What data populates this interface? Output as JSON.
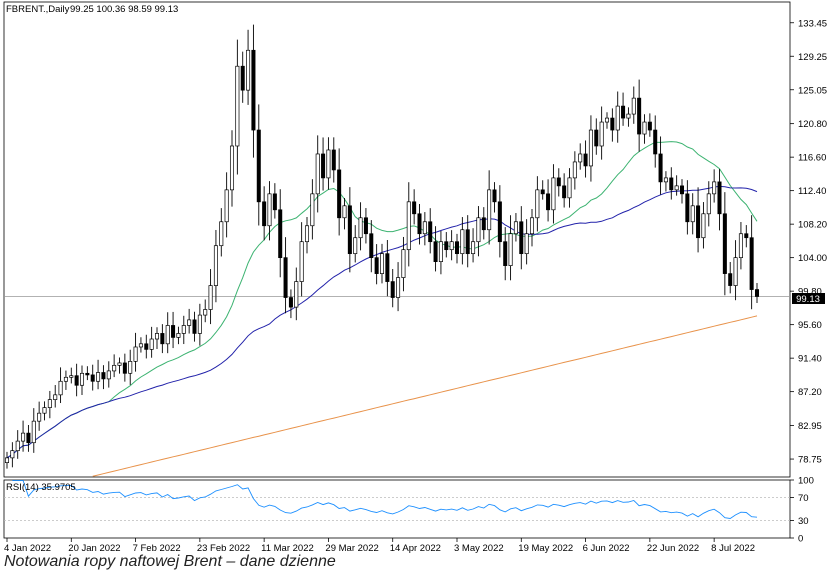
{
  "header": {
    "symbol": "FBRENT.,Daily",
    "ohlc": "99.25 100.36 98.59 99.13"
  },
  "caption": "Notowania ropy naftowej Brent – dane dzienne",
  "colors": {
    "candle_up": "#ffffff",
    "candle_down": "#000000",
    "candle_outline": "#000000",
    "ma_fast": "#3cb371",
    "ma_mid": "#2222aa",
    "ma_slow": "#e8924a",
    "rsi_line": "#1e90ff",
    "price_tag_bg": "#000000",
    "price_tag_text": "#ffffff"
  },
  "chart_data": [
    {
      "type": "candlestick",
      "title": "FBRENT.,Daily",
      "current_price": "99.13",
      "y_ticks": [
        "133.45",
        "129.25",
        "125.05",
        "120.80",
        "116.60",
        "112.40",
        "108.20",
        "104.00",
        "99.80",
        "95.60",
        "91.40",
        "87.20",
        "82.95",
        "78.75"
      ],
      "ylim": [
        76.5,
        135.3
      ],
      "x_ticks": [
        {
          "label": "4 Jan 2022",
          "index": 0
        },
        {
          "label": "20 Jan 2022",
          "index": 12
        },
        {
          "label": "7 Feb 2022",
          "index": 24
        },
        {
          "label": "23 Feb 2022",
          "index": 36
        },
        {
          "label": "11 Mar 2022",
          "index": 48
        },
        {
          "label": "29 Mar 2022",
          "index": 60
        },
        {
          "label": "14 Apr 2022",
          "index": 72
        },
        {
          "label": "3 May 2022",
          "index": 84
        },
        {
          "label": "19 May 2022",
          "index": 96
        },
        {
          "label": "6 Jun 2022",
          "index": 108
        },
        {
          "label": "22 Jun 2022",
          "index": 120
        },
        {
          "label": "8 Jul 2022",
          "index": 132
        }
      ],
      "closes": [
        78.9,
        79.8,
        81.0,
        82.0,
        80.8,
        83.5,
        84.5,
        85.2,
        86.2,
        86.8,
        88.5,
        89.0,
        89.2,
        88.0,
        89.5,
        89.3,
        88.5,
        89.6,
        88.8,
        89.8,
        90.5,
        90.8,
        89.5,
        91.0,
        92.8,
        93.2,
        92.5,
        93.8,
        94.5,
        93.2,
        95.5,
        94.0,
        94.5,
        95.5,
        96.2,
        94.5,
        96.8,
        97.5,
        100.5,
        105.5,
        108.5,
        112.5,
        118.0,
        128.0,
        125.0,
        130.0,
        120.0,
        111.0,
        108.0,
        112.0,
        110.0,
        104.0,
        99.0,
        97.8,
        101.0,
        106.0,
        108.0,
        112.0,
        117.0,
        114.0,
        117.5,
        115.0,
        109.0,
        110.5,
        104.5,
        106.5,
        109.0,
        107.0,
        104.0,
        102.0,
        104.5,
        101.0,
        99.0,
        101.5,
        105.0,
        111.0,
        109.5,
        107.0,
        108.5,
        106.0,
        103.5,
        106.0,
        105.0,
        106.0,
        104.5,
        107.5,
        104.5,
        106.0,
        109.0,
        107.5,
        112.5,
        111.0,
        106.0,
        103.0,
        107.0,
        108.5,
        104.5,
        107.0,
        109.0,
        112.5,
        112.0,
        110.0,
        114.0,
        113.0,
        111.5,
        114.0,
        116.0,
        117.0,
        115.5,
        120.0,
        118.0,
        121.0,
        121.5,
        120.0,
        123.0,
        121.5,
        122.0,
        124.0,
        119.5,
        121.0,
        120.0,
        117.0,
        113.5,
        114.0,
        112.5,
        113.0,
        112.0,
        108.5,
        110.5,
        106.5,
        109.5,
        112.0,
        113.5,
        109.5,
        102.0,
        100.5,
        104.0,
        107.0,
        106.5,
        100.0,
        99.13
      ],
      "moving_averages": [
        {
          "color_key": "ma_fast",
          "period": 20
        },
        {
          "color_key": "ma_mid",
          "period": 50
        },
        {
          "color_key": "ma_slow",
          "period": 200,
          "start": 74.0,
          "end": 96.7
        }
      ]
    },
    {
      "type": "line",
      "title": "RSI(14) 35.9705",
      "y_ticks": [
        "100",
        "70",
        "30",
        "0"
      ],
      "ylim": [
        0,
        100
      ]
    }
  ]
}
